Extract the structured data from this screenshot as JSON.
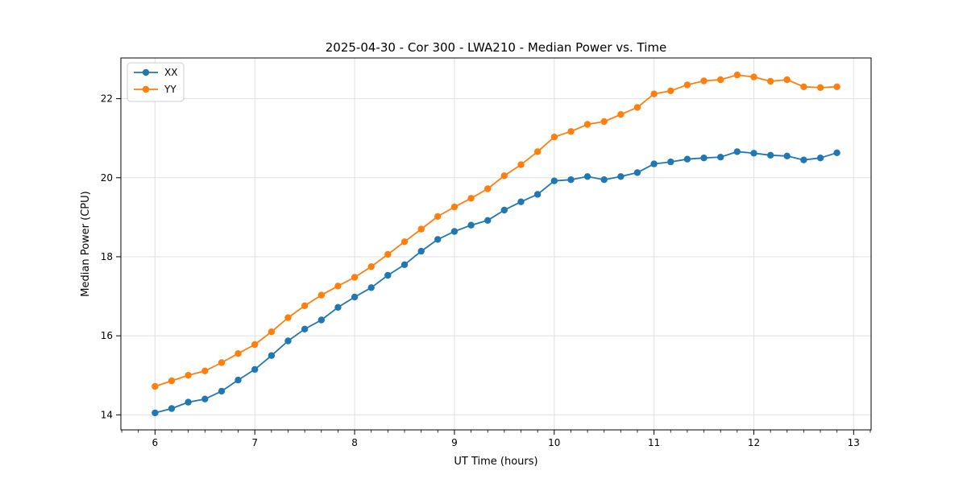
{
  "figure": {
    "background_color": "#ffffff",
    "spine_color": "#000000",
    "grid_color": "#e0e0e0",
    "legend_border_color": "#cccccc",
    "legend_background": "rgba(255,255,255,0.85)"
  },
  "chart_data": {
    "type": "line",
    "title": "2025-04-30 - Cor 300 - LWA210 - Median Power vs. Time",
    "xlabel": "UT Time (hours)",
    "ylabel": "Median Power (CPU)",
    "xlim": [
      5.658,
      13.175
    ],
    "ylim": [
      13.62,
      23.03
    ],
    "x_ticks": [
      6,
      7,
      8,
      9,
      10,
      11,
      12,
      13
    ],
    "y_ticks": [
      14,
      16,
      18,
      20,
      22
    ],
    "x_minor_tick_step": 0.166667,
    "grid": true,
    "legend_position": "upper-left",
    "marker": "circle",
    "x": [
      6.0,
      6.167,
      6.333,
      6.5,
      6.667,
      6.833,
      7.0,
      7.167,
      7.333,
      7.5,
      7.667,
      7.833,
      8.0,
      8.167,
      8.333,
      8.5,
      8.667,
      8.833,
      9.0,
      9.167,
      9.333,
      9.5,
      9.667,
      9.833,
      10.0,
      10.167,
      10.333,
      10.5,
      10.667,
      10.833,
      11.0,
      11.167,
      11.333,
      11.5,
      11.667,
      11.833,
      12.0,
      12.167,
      12.333,
      12.5,
      12.667,
      12.833
    ],
    "series": [
      {
        "name": "XX",
        "color": "#1f77b4",
        "values": [
          14.05,
          14.16,
          14.32,
          14.4,
          14.6,
          14.88,
          15.15,
          15.5,
          15.87,
          16.17,
          16.4,
          16.72,
          16.98,
          17.22,
          17.53,
          17.8,
          18.14,
          18.44,
          18.64,
          18.8,
          18.92,
          19.18,
          19.39,
          19.58,
          19.92,
          19.95,
          20.03,
          19.95,
          20.03,
          20.13,
          20.35,
          20.4,
          20.47,
          20.5,
          20.52,
          20.66,
          20.62,
          20.57,
          20.55,
          20.45,
          20.5,
          20.63
        ]
      },
      {
        "name": "YY",
        "color": "#ff7f0e",
        "values": [
          14.72,
          14.86,
          15.0,
          15.11,
          15.32,
          15.55,
          15.78,
          16.1,
          16.46,
          16.76,
          17.03,
          17.26,
          17.48,
          17.75,
          18.06,
          18.38,
          18.7,
          19.02,
          19.26,
          19.48,
          19.72,
          20.05,
          20.33,
          20.66,
          21.03,
          21.17,
          21.35,
          21.42,
          21.6,
          21.78,
          22.12,
          22.2,
          22.35,
          22.45,
          22.48,
          22.6,
          22.55,
          22.44,
          22.48,
          22.3,
          22.28,
          22.3
        ]
      }
    ]
  }
}
